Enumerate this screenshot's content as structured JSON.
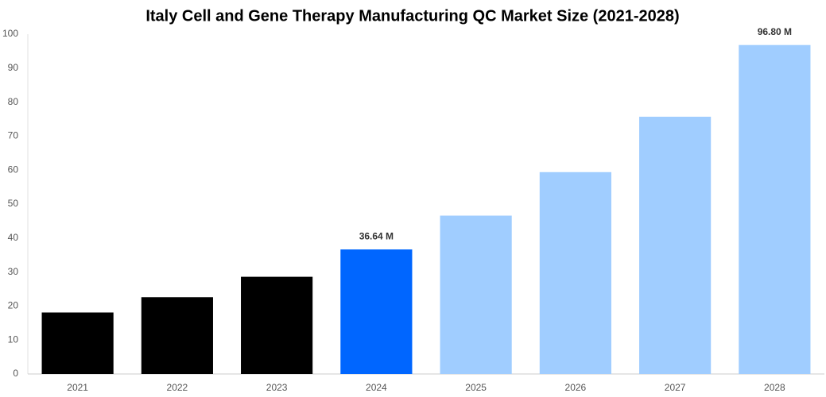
{
  "chart_data": {
    "type": "bar",
    "title": "Italy Cell and Gene Therapy Manufacturing QC Market Size (2021-2028)",
    "categories": [
      "2021",
      "2022",
      "2023",
      "2024",
      "2025",
      "2026",
      "2027",
      "2028"
    ],
    "values": [
      18.1,
      22.6,
      28.6,
      36.64,
      46.6,
      59.4,
      75.7,
      96.8
    ],
    "value_labels": [
      null,
      null,
      null,
      "36.64 M",
      null,
      null,
      null,
      "96.80 M"
    ],
    "colors": [
      "#000000",
      "#000000",
      "#000000",
      "#0066ff",
      "#a0cdff",
      "#a0cdff",
      "#a0cdff",
      "#a0cdff"
    ],
    "ylim": [
      0,
      100
    ],
    "yticks": [
      0,
      10,
      20,
      30,
      40,
      50,
      60,
      70,
      80,
      90,
      100
    ],
    "grid": false
  }
}
